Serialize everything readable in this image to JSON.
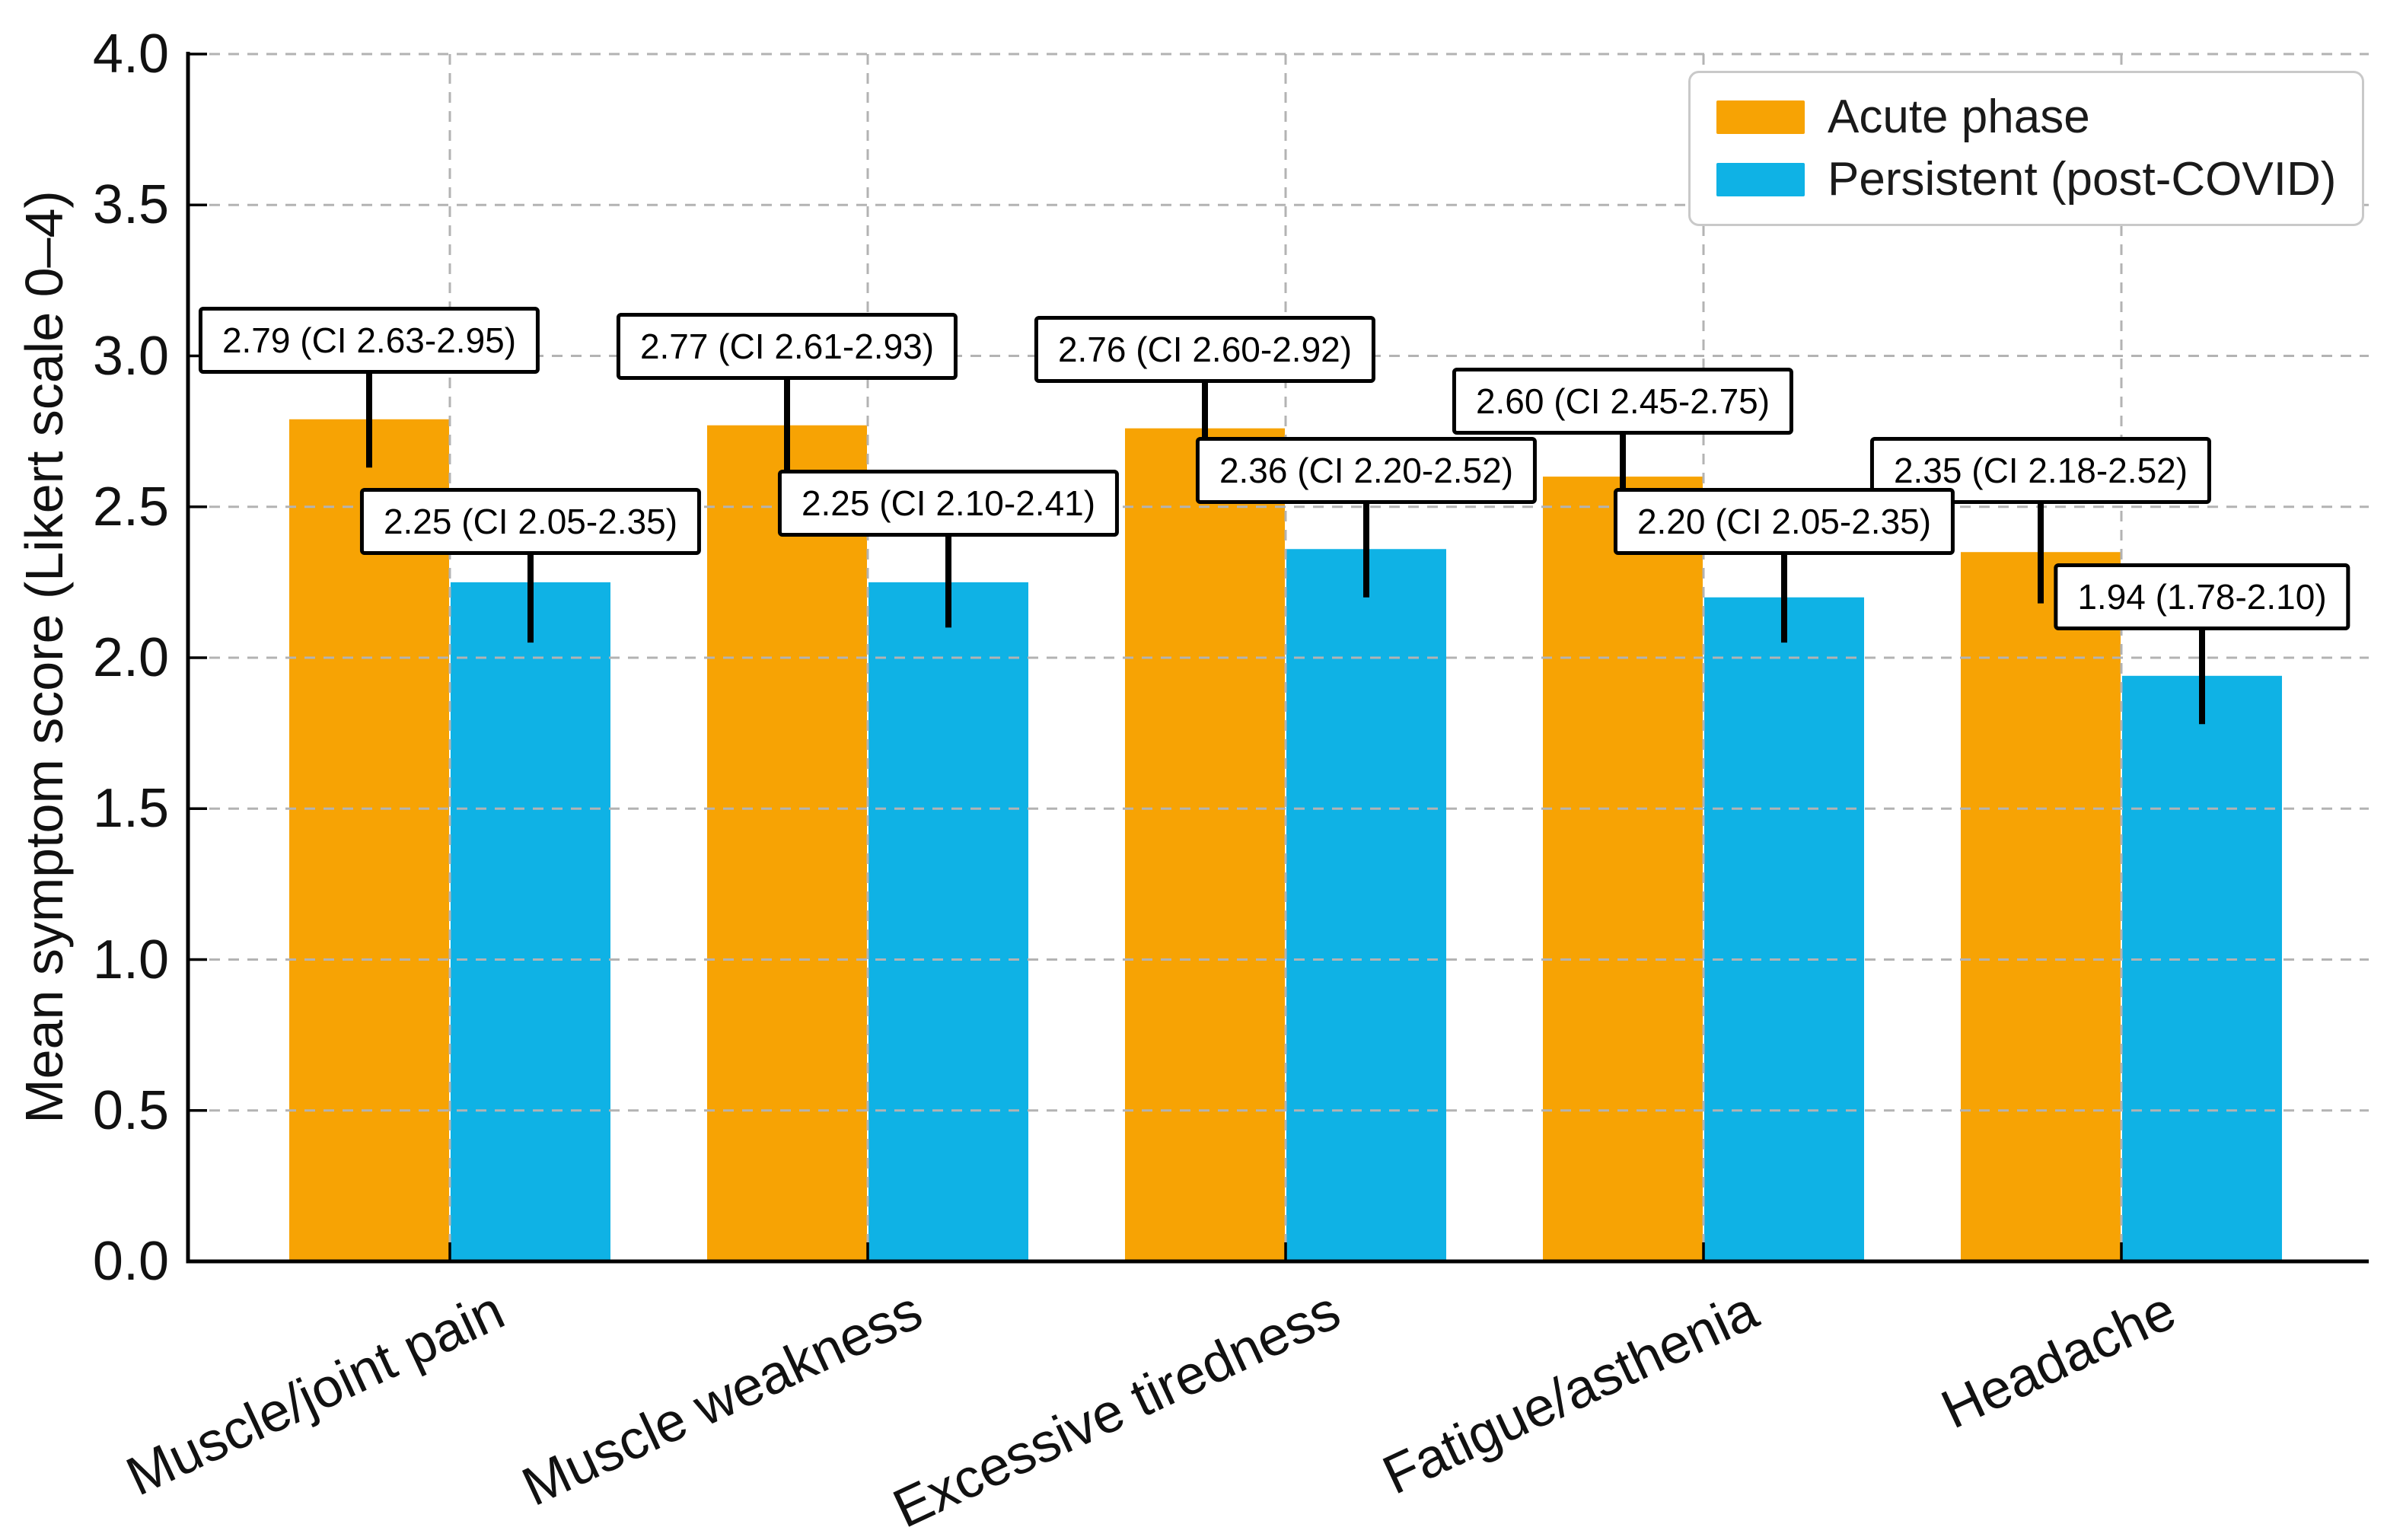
{
  "chart_data": {
    "type": "bar",
    "title": "",
    "xlabel": "",
    "ylabel": "Mean symptom score (Likert scale 0–4)",
    "ylim": [
      0.0,
      4.0
    ],
    "ytick_labels": [
      "0.0",
      "0.5",
      "1.0",
      "1.5",
      "2.0",
      "2.5",
      "3.0",
      "3.5",
      "4.0"
    ],
    "grid": {
      "horizontal": true,
      "vertical": true,
      "style": "dashed",
      "color": "#b3b3b3"
    },
    "legend_position": "upper right",
    "categories": [
      "Muscle/joint pain",
      "Muscle weakness",
      "Excessive tiredness",
      "Fatigue/asthenia",
      "Headache"
    ],
    "series": [
      {
        "name": "Acute phase",
        "color": "#F7A304",
        "values": [
          2.79,
          2.77,
          2.76,
          2.6,
          2.35
        ],
        "ci_low": [
          2.63,
          2.61,
          2.6,
          2.45,
          2.18
        ],
        "ci_high": [
          2.95,
          2.93,
          2.92,
          2.75,
          2.52
        ],
        "annotations": [
          "2.79 (CI 2.63-2.95)",
          "2.77 (CI 2.61-2.93)",
          "2.76 (CI 2.60-2.92)",
          "2.60 (CI 2.45-2.75)",
          "2.35 (CI 2.18-2.52)"
        ]
      },
      {
        "name": "Persistent (post-COVID)",
        "color": "#0FB2E5",
        "values": [
          2.25,
          2.25,
          2.36,
          2.2,
          1.94
        ],
        "ci_low": [
          2.05,
          2.1,
          2.2,
          2.05,
          1.78
        ],
        "ci_high": [
          2.35,
          2.41,
          2.52,
          2.35,
          2.1
        ],
        "annotations": [
          "2.25 (CI 2.05-2.35)",
          "2.25 (CI 2.10-2.41)",
          "2.36 (CI 2.20-2.52)",
          "2.20 (CI 2.05-2.35)",
          "1.94 (1.78-2.10)"
        ]
      }
    ]
  },
  "legend": {
    "items": [
      {
        "label": "Acute phase",
        "color": "#F7A304"
      },
      {
        "label": "Persistent (post-COVID)",
        "color": "#0FB2E5"
      }
    ]
  }
}
